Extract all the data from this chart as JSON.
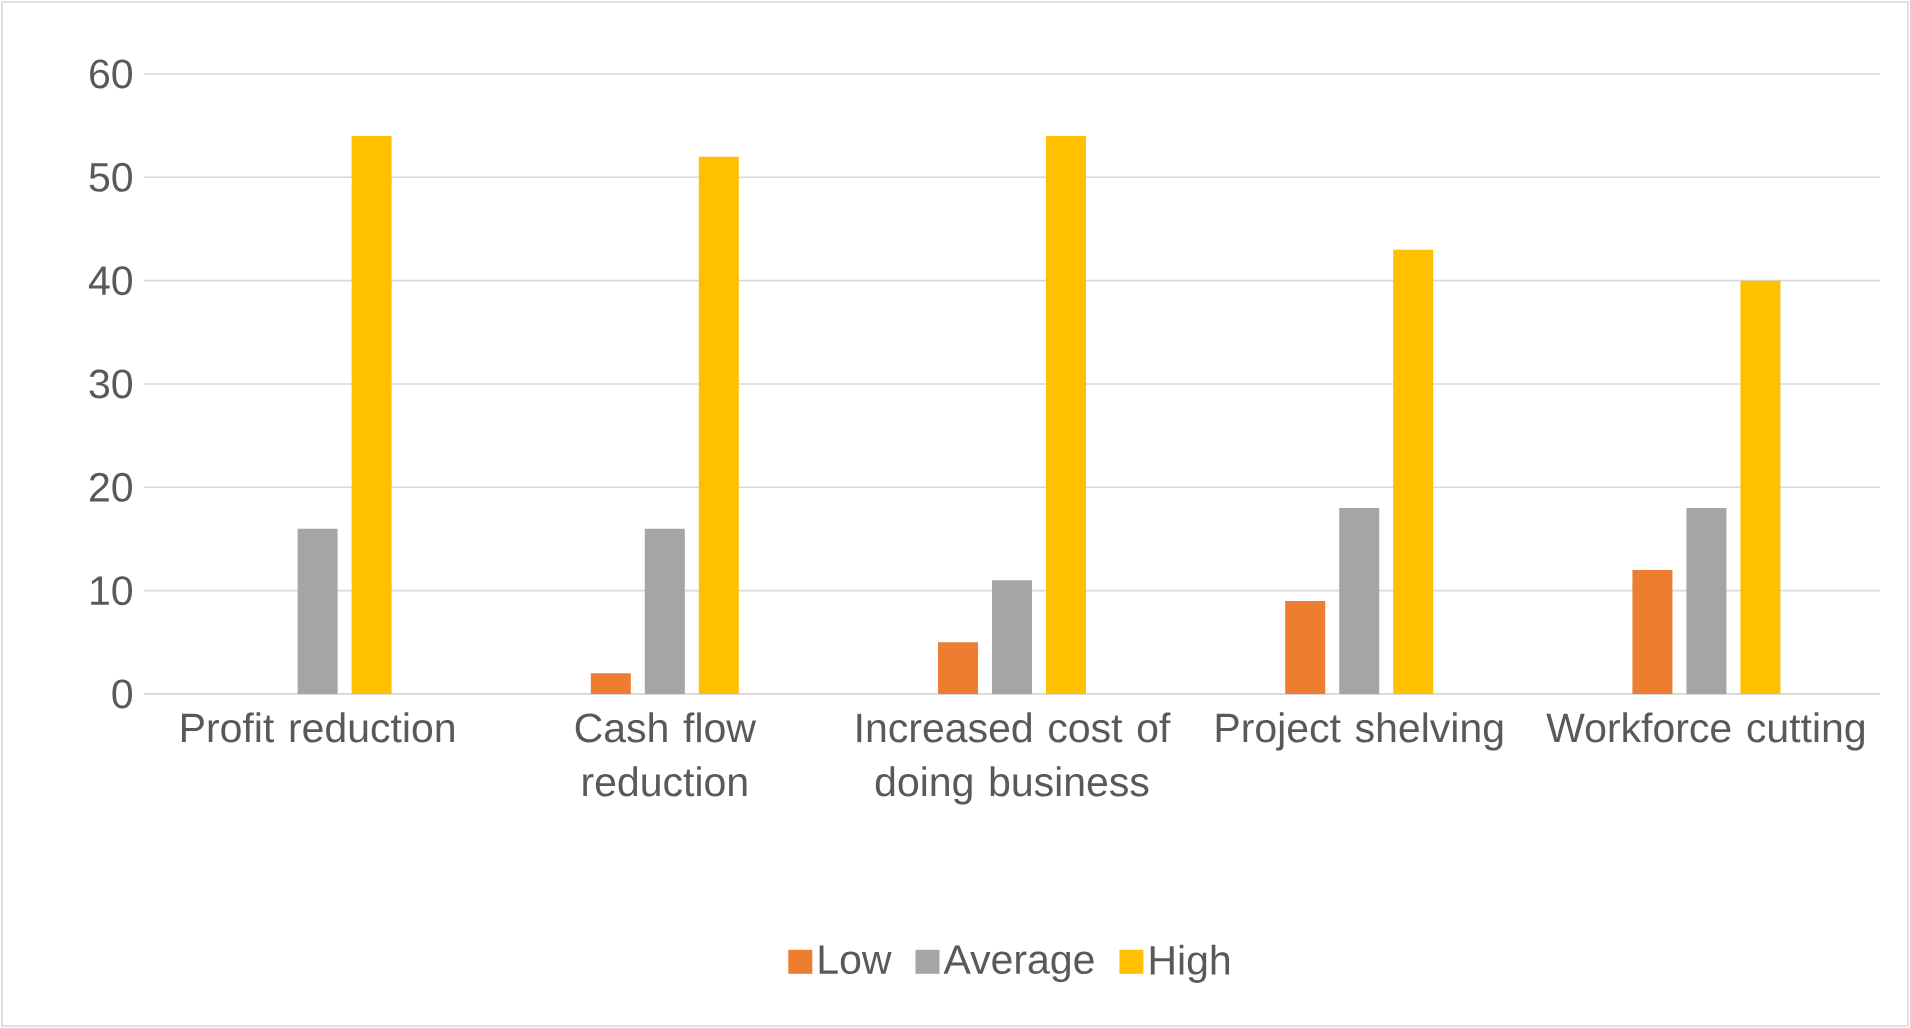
{
  "chart_data": {
    "type": "bar",
    "categories": [
      "Profit reduction",
      "Cash flow reduction",
      "Increased cost of doing business",
      "Project shelving",
      "Workforce cutting"
    ],
    "series": [
      {
        "name": "Low",
        "color": "#ed7d31",
        "values": [
          0,
          2,
          5,
          9,
          12
        ]
      },
      {
        "name": "Average",
        "color": "#a5a5a5",
        "values": [
          16,
          16,
          11,
          18,
          18
        ]
      },
      {
        "name": "High",
        "color": "#ffc000",
        "values": [
          54,
          52,
          54,
          43,
          40
        ]
      }
    ],
    "ylim": [
      0,
      60
    ],
    "yticks": [
      0,
      10,
      20,
      30,
      40,
      50,
      60
    ],
    "grid": "y",
    "legend": "bottom"
  }
}
